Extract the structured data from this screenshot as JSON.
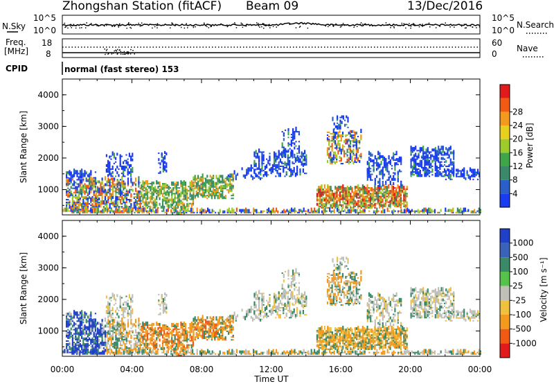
{
  "header": {
    "station": "Zhongshan Station (fitACF)",
    "beam": "Beam 09",
    "date": "13/Dec/2016"
  },
  "noise_panel": {
    "left_label": "N.Sky",
    "left_ticks": [
      "10^5",
      "10^0"
    ],
    "right_label": "N.Search",
    "right_ticks": [
      "10^5",
      "10^0"
    ]
  },
  "freq_panel": {
    "left_label_1": "Freq.",
    "left_label_2": "[MHz]",
    "left_ticks": [
      "18",
      "8"
    ],
    "right_label": "Nave",
    "right_ticks": [
      "60",
      "0"
    ]
  },
  "cpid": {
    "label": "CPID",
    "program": "normal (fast stereo) 153"
  },
  "chart_data": [
    {
      "type": "heatmap",
      "name": "power",
      "ylabel": "Slant Range [km]",
      "xlabel": "",
      "xlim_hours": [
        0,
        24
      ],
      "ylim_km": [
        200,
        4500
      ],
      "yticks": [
        "1000",
        "2000",
        "3000",
        "4000"
      ],
      "colorbar": {
        "label": "Power [dB]",
        "ticks": [
          "4",
          "8",
          "12",
          "16",
          "20",
          "24",
          "28"
        ],
        "colors": [
          "#1a3cf0",
          "#2a5fc9",
          "#3a8a6a",
          "#3fa648",
          "#9ccb2c",
          "#e7cf1e",
          "#f39a1e",
          "#f05a14",
          "#e31a1c"
        ]
      }
    },
    {
      "type": "heatmap",
      "name": "velocity",
      "ylabel": "Slant Range [km]",
      "xlabel": "Time UT",
      "xlim_hours": [
        0,
        24
      ],
      "ylim_km": [
        200,
        4500
      ],
      "yticks": [
        "1000",
        "2000",
        "3000",
        "4000"
      ],
      "xticks": [
        "00:00",
        "04:00",
        "08:00",
        "12:00",
        "16:00",
        "20:00",
        "00:00"
      ],
      "colorbar": {
        "label": "Velocity [m s⁻¹]",
        "ticks": [
          "1000",
          "500",
          "100",
          "25",
          "-25",
          "-100",
          "-500",
          "-1000"
        ],
        "colors": [
          "#2040c8",
          "#3a62b8",
          "#3a8a6a",
          "#55c24a",
          "#c0c0b8",
          "#f0c040",
          "#f39a1e",
          "#f05a14",
          "#e31a1c"
        ]
      }
    }
  ]
}
